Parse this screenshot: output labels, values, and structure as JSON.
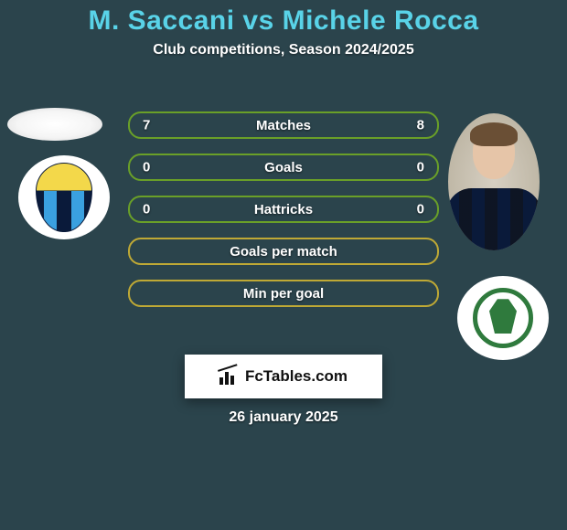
{
  "colors": {
    "background": "#2b444c",
    "title": "#59d3e8",
    "subtitle": "#ffffff",
    "text": "#ffffff",
    "bar_border_primary": "#6aa028",
    "bar_border_alt": "#bfa935",
    "date": "#ffffff"
  },
  "title": {
    "text": "M. Saccani vs Michele Rocca",
    "fontsize": 30
  },
  "subtitle": {
    "text": "Club competitions, Season 2024/2025",
    "fontsize": 16
  },
  "stats": {
    "label_fontsize": 15,
    "value_fontsize": 15,
    "bars": [
      {
        "label": "Matches",
        "left": "7",
        "right": "8",
        "border": "primary"
      },
      {
        "label": "Goals",
        "left": "0",
        "right": "0",
        "border": "primary"
      },
      {
        "label": "Hattricks",
        "left": "0",
        "right": "0",
        "border": "primary"
      },
      {
        "label": "Goals per match",
        "left": "",
        "right": "",
        "border": "alt"
      },
      {
        "label": "Min per goal",
        "left": "",
        "right": "",
        "border": "alt"
      }
    ]
  },
  "brand": {
    "text": "FcTables.com",
    "fontsize": 17
  },
  "date": {
    "text": "26 january 2025",
    "fontsize": 16
  }
}
